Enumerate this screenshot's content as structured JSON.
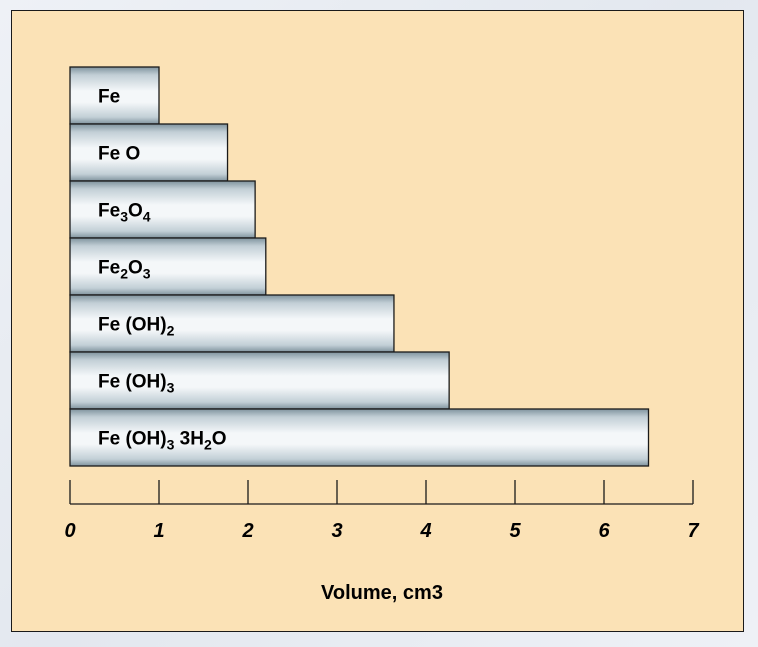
{
  "chart_data": {
    "type": "bar",
    "orientation": "horizontal",
    "categories": [
      {
        "base": "Fe",
        "parts": [
          [
            "Fe",
            false
          ]
        ]
      },
      {
        "base": "Fe O",
        "parts": [
          [
            "Fe O",
            false
          ]
        ]
      },
      {
        "base": "Fe3O4",
        "parts": [
          [
            "Fe",
            false
          ],
          [
            "3",
            true
          ],
          [
            "O",
            false
          ],
          [
            "4",
            true
          ]
        ]
      },
      {
        "base": "Fe2O3",
        "parts": [
          [
            "Fe",
            false
          ],
          [
            "2",
            true
          ],
          [
            "O",
            false
          ],
          [
            "3",
            true
          ]
        ]
      },
      {
        "base": "Fe (OH)2",
        "parts": [
          [
            "Fe (OH)",
            false
          ],
          [
            "2",
            true
          ]
        ]
      },
      {
        "base": "Fe (OH)3",
        "parts": [
          [
            "Fe (OH)",
            false
          ],
          [
            "3",
            true
          ]
        ]
      },
      {
        "base": "Fe (OH)3 3H2O",
        "parts": [
          [
            "Fe (OH)",
            false
          ],
          [
            "3",
            true
          ],
          [
            " 3H",
            false
          ],
          [
            "2",
            true
          ],
          [
            "O",
            false
          ]
        ]
      }
    ],
    "values": [
      1.0,
      1.77,
      2.08,
      2.2,
      3.64,
      4.26,
      6.5
    ],
    "xlim": [
      0,
      7
    ],
    "xticks": [
      "0",
      "1",
      "2",
      "3",
      "4",
      "5",
      "6",
      "7"
    ],
    "xlabel": "Volume, cm3",
    "ylabel": "",
    "title": "",
    "grid": false,
    "colors": {
      "background": "#fbe2b6",
      "bar_light": "#f4f7f9",
      "bar_mid": "#c2cfd6",
      "bar_dark": "#7f939e",
      "outline": "#1a1a1a"
    }
  }
}
